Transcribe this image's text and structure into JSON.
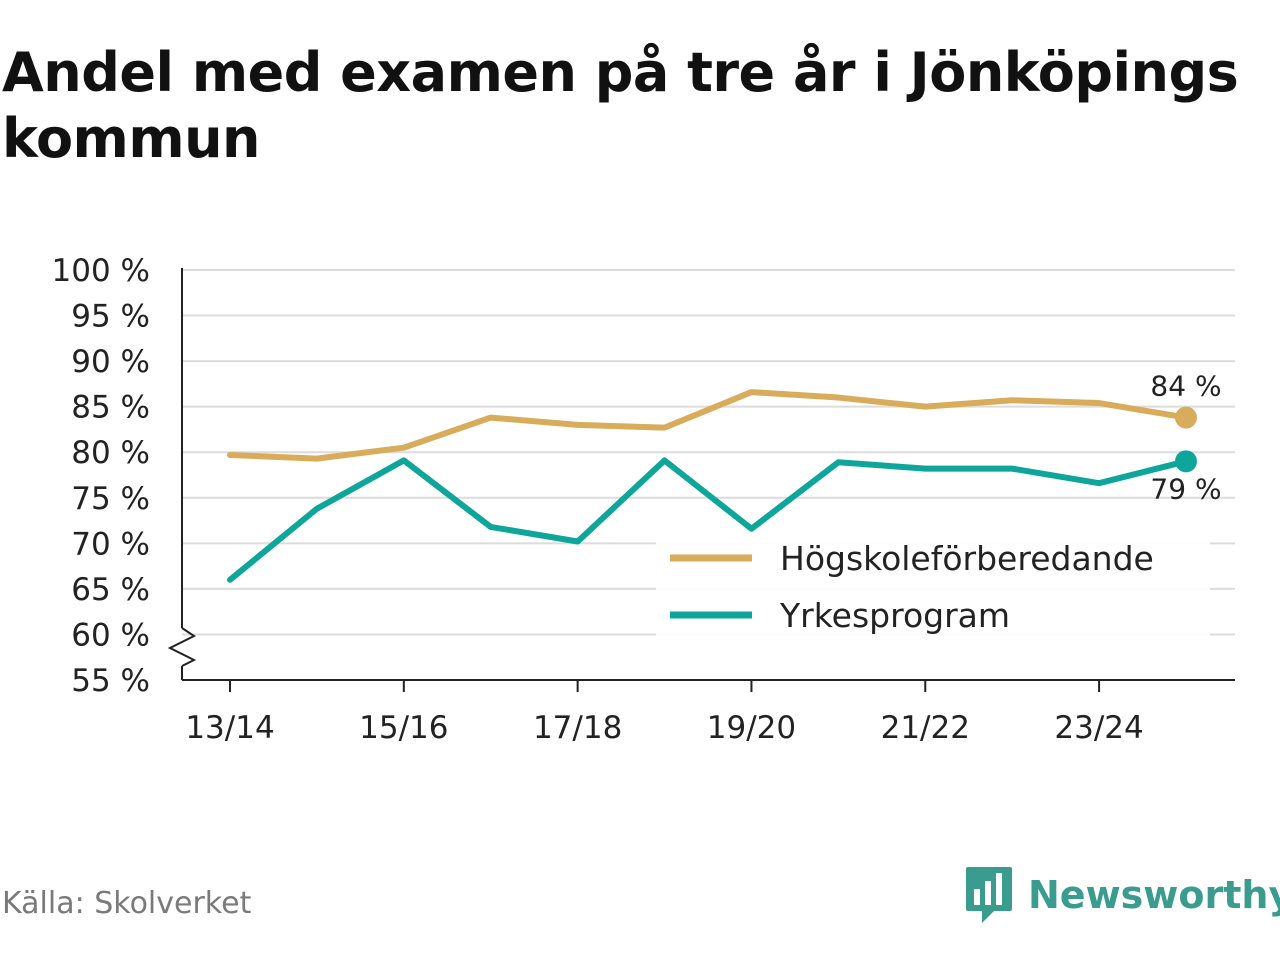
{
  "title": "Andel med examen på tre år i Jönköpings kommun",
  "source": "Källa: Skolverket",
  "brand": {
    "name": "Newsworthy",
    "icon": "newsworthy-logo-icon",
    "color": "#3a9b8f"
  },
  "chart_data": {
    "type": "line",
    "title": "Andel med examen på tre år i Jönköpings kommun",
    "xlabel": "",
    "ylabel": "",
    "x": [
      "13/14",
      "14/15",
      "15/16",
      "16/17",
      "17/18",
      "18/19",
      "19/20",
      "20/21",
      "21/22",
      "22/23",
      "23/24",
      "24/25"
    ],
    "x_tick_labels": [
      "13/14",
      "15/16",
      "17/18",
      "19/20",
      "21/22",
      "23/24"
    ],
    "ylim": [
      55,
      100
    ],
    "y_ticks": [
      55,
      60,
      65,
      70,
      75,
      80,
      85,
      90,
      95,
      100
    ],
    "y_tick_labels": [
      "55 %",
      "60 %",
      "65 %",
      "70 %",
      "75 %",
      "80 %",
      "85 %",
      "90 %",
      "95 %",
      "100 %"
    ],
    "grid": true,
    "axis_break": true,
    "legend_position": "bottom-right",
    "series": [
      {
        "name": "Högskoleförberedande",
        "color": "#d9ac5b",
        "values": [
          79.7,
          79.3,
          80.5,
          83.8,
          83.0,
          82.7,
          86.6,
          86.0,
          85.0,
          85.7,
          85.4,
          83.8
        ],
        "end_label": "84 %"
      },
      {
        "name": "Yrkesprogram",
        "color": "#0ea59a",
        "values": [
          66.0,
          73.8,
          79.1,
          71.8,
          70.2,
          79.1,
          71.6,
          78.9,
          78.2,
          78.2,
          76.6,
          79.0
        ],
        "end_label": "79 %"
      }
    ]
  }
}
